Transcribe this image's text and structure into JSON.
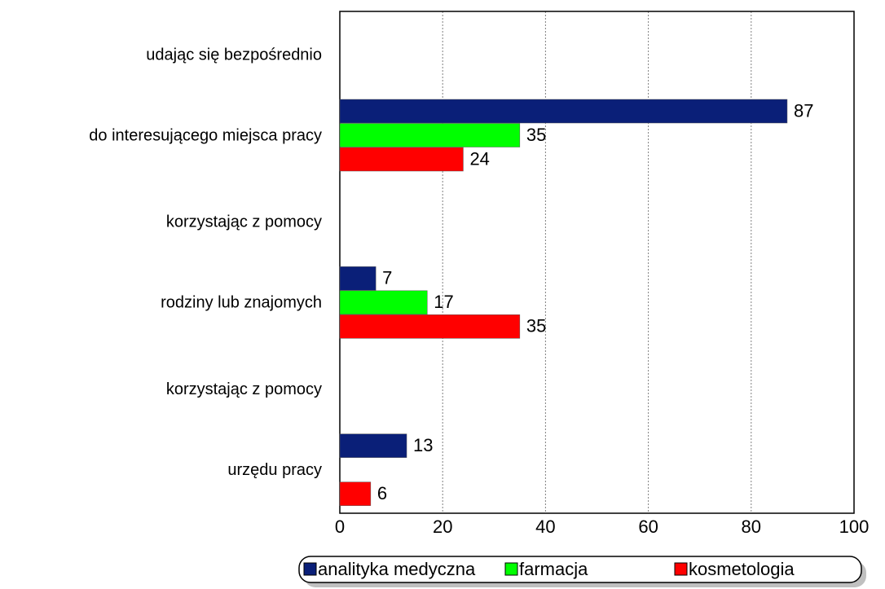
{
  "chart_data": {
    "type": "bar",
    "orientation": "horizontal",
    "categories": [
      [
        "udając się bezpośrednio",
        "do interesującego miejsca pracy"
      ],
      [
        "korzystając z pomocy",
        "rodziny lub znajomych"
      ],
      [
        "korzystając z pomocy",
        "urzędu pracy"
      ]
    ],
    "series": [
      {
        "name": "analityka medyczna",
        "color": "#0a1f78",
        "values": [
          87,
          7,
          13
        ]
      },
      {
        "name": "farmacja",
        "color": "#00ff00",
        "values": [
          35,
          17,
          null
        ]
      },
      {
        "name": "kosmetologia",
        "color": "#ff0000",
        "values": [
          24,
          35,
          6
        ]
      }
    ],
    "xlim": [
      0,
      100
    ],
    "xticks": [
      0,
      20,
      40,
      60,
      80,
      100
    ],
    "grid": true,
    "legend": "bottom"
  }
}
